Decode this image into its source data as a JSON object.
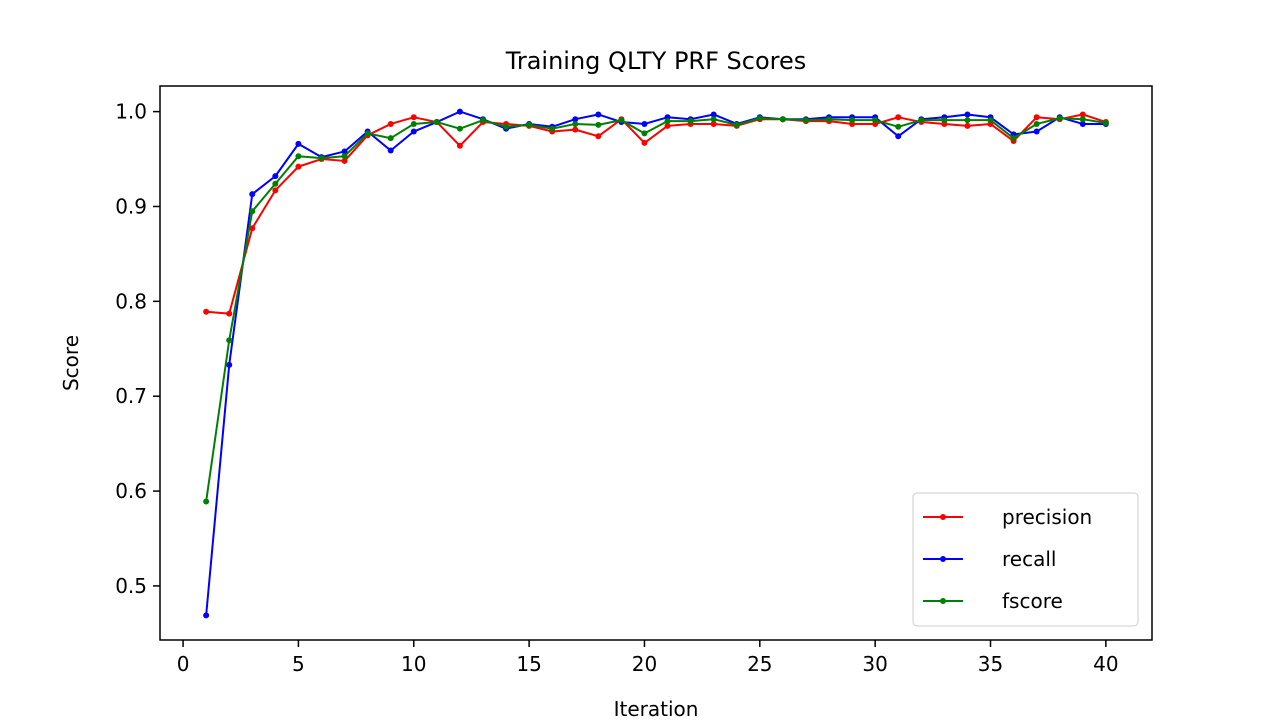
{
  "chart_data": {
    "type": "line",
    "title": "Training QLTY PRF Scores",
    "xlabel": "Iteration",
    "ylabel": "Score",
    "xlim": [
      -1,
      42
    ],
    "ylim": [
      0.443,
      1.027
    ],
    "xticks": [
      0,
      5,
      10,
      15,
      20,
      25,
      30,
      35,
      40
    ],
    "yticks": [
      0.5,
      0.6,
      0.7,
      0.8,
      0.9,
      1.0
    ],
    "ytick_labels": [
      "0.5",
      "0.6",
      "0.7",
      "0.8",
      "0.9",
      "1.0"
    ],
    "grid": false,
    "legend_position": "lower-right",
    "x": [
      1,
      2,
      3,
      4,
      5,
      6,
      7,
      8,
      9,
      10,
      11,
      12,
      13,
      14,
      15,
      16,
      17,
      18,
      19,
      20,
      21,
      22,
      23,
      24,
      25,
      26,
      27,
      28,
      29,
      30,
      31,
      32,
      33,
      34,
      35,
      36,
      37,
      38,
      39,
      40
    ],
    "series": [
      {
        "name": "precision",
        "color": "#ff0000",
        "values": [
          0.789,
          0.787,
          0.877,
          0.917,
          0.942,
          0.95,
          0.948,
          0.975,
          0.987,
          0.994,
          0.989,
          0.964,
          0.989,
          0.987,
          0.985,
          0.979,
          0.981,
          0.974,
          0.992,
          0.967,
          0.985,
          0.987,
          0.987,
          0.985,
          0.992,
          0.992,
          0.99,
          0.99,
          0.987,
          0.987,
          0.994,
          0.989,
          0.987,
          0.985,
          0.987,
          0.969,
          0.994,
          0.992,
          0.997,
          0.989
        ]
      },
      {
        "name": "recall",
        "color": "#0000ff",
        "values": [
          0.469,
          0.733,
          0.913,
          0.932,
          0.966,
          0.952,
          0.958,
          0.979,
          0.959,
          0.979,
          0.989,
          1.0,
          0.992,
          0.982,
          0.987,
          0.984,
          0.992,
          0.997,
          0.989,
          0.987,
          0.994,
          0.992,
          0.997,
          0.987,
          0.994,
          0.992,
          0.992,
          0.994,
          0.994,
          0.994,
          0.974,
          0.992,
          0.994,
          0.997,
          0.994,
          0.976,
          0.979,
          0.994,
          0.987,
          0.987
        ]
      },
      {
        "name": "fscore",
        "color": "#008000",
        "values": [
          0.589,
          0.759,
          0.895,
          0.924,
          0.953,
          0.951,
          0.953,
          0.977,
          0.972,
          0.987,
          0.989,
          0.982,
          0.991,
          0.984,
          0.986,
          0.982,
          0.987,
          0.986,
          0.991,
          0.977,
          0.99,
          0.99,
          0.992,
          0.986,
          0.993,
          0.992,
          0.991,
          0.992,
          0.991,
          0.991,
          0.984,
          0.991,
          0.991,
          0.991,
          0.991,
          0.972,
          0.987,
          0.993,
          0.992,
          0.988
        ]
      }
    ]
  }
}
